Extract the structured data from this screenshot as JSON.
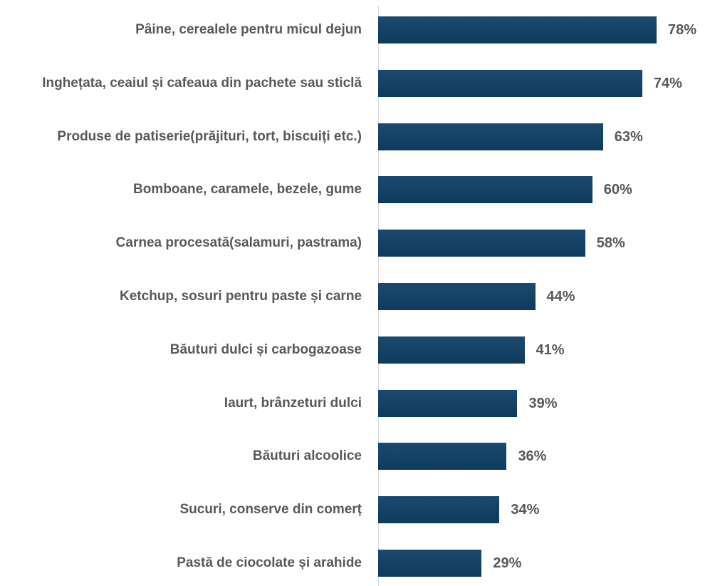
{
  "chart_data": {
    "type": "barh",
    "categories": [
      "Pâine, cerealele pentru micul dejun",
      "Inghețata, ceaiul și cafeaua din pachete sau sticlă",
      "Produse de patiserie(prăjituri, tort, biscuiți etc.)",
      "Bomboane, caramele, bezele, gume",
      "Carnea procesată(salamuri, pastrama)",
      "Ketchup, sosuri pentru paste și carne",
      "Băuturi dulci și carbogazoase",
      "Iaurt, brânzeturi dulci",
      "Băuturi alcoolice",
      "Sucuri, conserve din comerț",
      "Pastă de ciocolate și arahide"
    ],
    "values": [
      78,
      74,
      63,
      60,
      58,
      44,
      41,
      39,
      36,
      34,
      29
    ],
    "value_labels": [
      "78%",
      "74%",
      "63%",
      "60%",
      "58%",
      "44%",
      "41%",
      "39%",
      "36%",
      "34%",
      "29%"
    ],
    "color": "#0f3a5c",
    "xlim": [
      0,
      80
    ]
  }
}
